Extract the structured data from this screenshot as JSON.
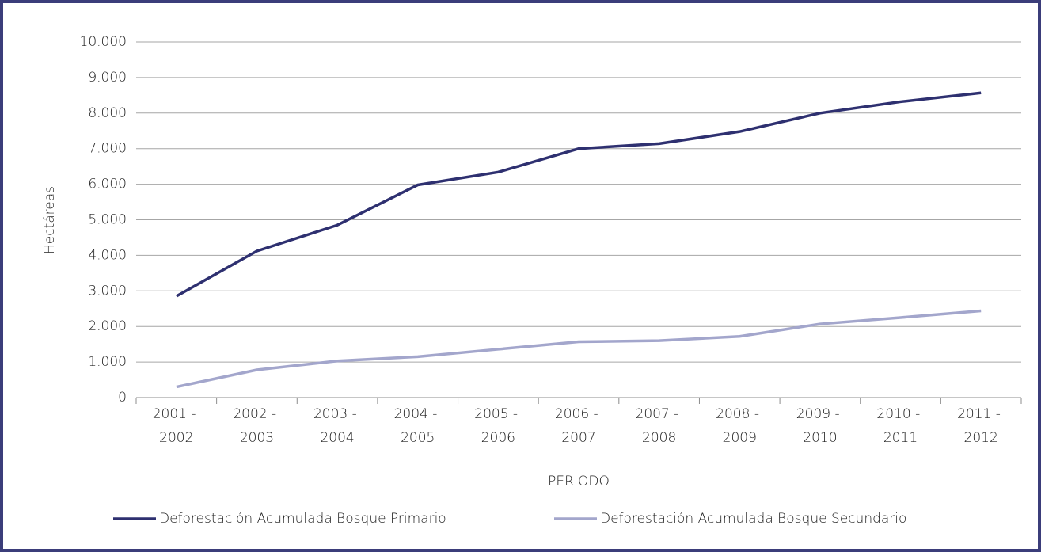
{
  "chart_data": {
    "type": "line",
    "y_label": "Hectáreas",
    "x_label": "PERIODO",
    "categories": [
      "2001 - 2002",
      "2002 - 2003",
      "2003 - 2004",
      "2004 - 2005",
      "2005 - 2006",
      "2006 - 2007",
      "2007 - 2008",
      "2008 - 2009",
      "2009 - 2010",
      "2010 - 2011",
      "2011 - 2012"
    ],
    "series": [
      {
        "name": "Deforestación Acumulada Bosque Primario",
        "color": "#2e3070",
        "values": [
          2850,
          4120,
          4850,
          5980,
          6340,
          7000,
          7140,
          7480,
          8000,
          8320,
          8570
        ]
      },
      {
        "name": "Deforestación Acumulada Bosque Secundario",
        "color": "#a3a6cc",
        "values": [
          300,
          780,
          1030,
          1150,
          1360,
          1570,
          1600,
          1720,
          2070,
          2250,
          2440
        ]
      }
    ],
    "ylim": [
      0,
      10000
    ],
    "yticks": [
      0,
      {
        "value": 1000,
        "label": "1.000"
      },
      {
        "value": 2000,
        "label": "2.000"
      },
      {
        "value": 3000,
        "label": "3.000"
      },
      {
        "value": 4000,
        "label": "4.000"
      },
      {
        "value": 5000,
        "label": "5.000"
      },
      {
        "value": 6000,
        "label": "6.000"
      },
      {
        "value": 7000,
        "label": "7.000"
      },
      {
        "value": 8000,
        "label": "8.000"
      },
      {
        "value": 9000,
        "label": "9.000"
      },
      {
        "value": 10000,
        "label": "10.000"
      }
    ],
    "grid": true,
    "legend": "bottom"
  }
}
